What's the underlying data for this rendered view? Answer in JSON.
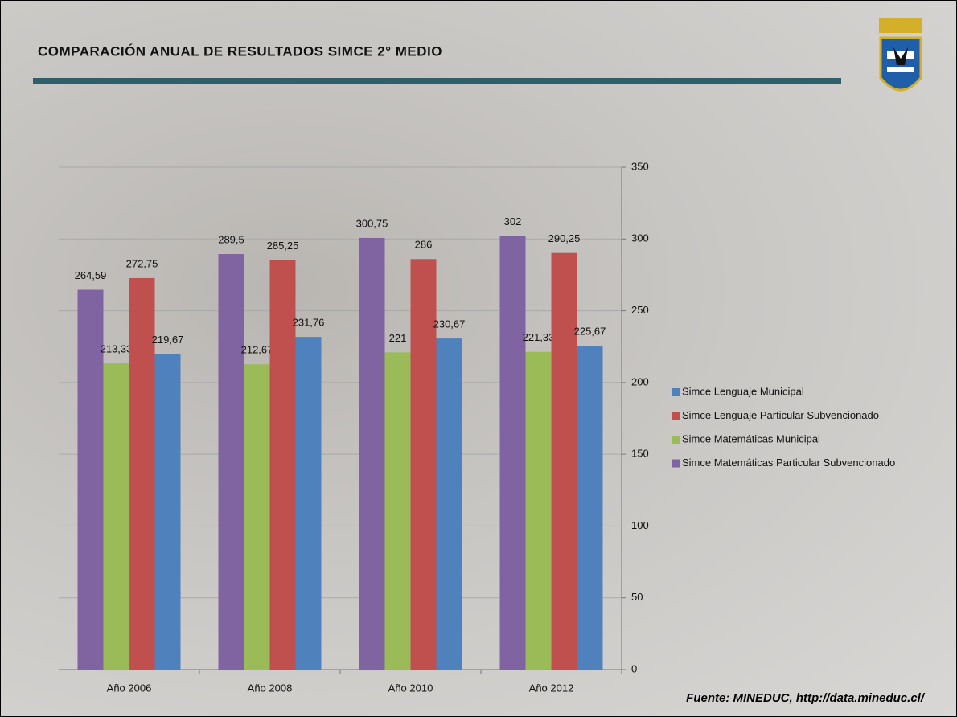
{
  "chart_data": {
    "type": "bar",
    "title": "COMPARACIÓN ANUAL DE RESULTADOS SIMCE 2° MEDIO",
    "source": "Fuente: MINEDUC, http://data.mineduc.cl/",
    "categories": [
      "Año 2006",
      "Año 2008",
      "Año 2010",
      "Año 2012"
    ],
    "series": [
      {
        "name": "Simce Matemáticas  Particular Subvencionado",
        "color": "#8064a2",
        "values": [
          264.59,
          289.5,
          300.75,
          302
        ],
        "value_labels": [
          "264,59",
          "289,5",
          "300,75",
          "302"
        ]
      },
      {
        "name": "Simce Matemáticas  Municipal",
        "color": "#9bbb59",
        "values": [
          213.33,
          212.67,
          221,
          221.33
        ],
        "value_labels": [
          "213,33",
          "212,67",
          "221",
          "221,33"
        ]
      },
      {
        "name": "Simce Lenguaje  Particular Subvencionado",
        "color": "#c0504d",
        "values": [
          272.75,
          285.25,
          286,
          290.25
        ],
        "value_labels": [
          "272,75",
          "285,25",
          "286",
          "290,25"
        ]
      },
      {
        "name": "Simce Lenguaje  Municipal",
        "color": "#4f81bd",
        "values": [
          219.67,
          231.76,
          230.67,
          225.67
        ],
        "value_labels": [
          "219,67",
          "231,76",
          "230,67",
          "225,67"
        ]
      }
    ],
    "ylim": [
      0,
      350
    ],
    "yticks": [
      0,
      50,
      100,
      150,
      200,
      250,
      300,
      350
    ],
    "y_axis_side": "right",
    "grid": true,
    "legend": "right"
  }
}
